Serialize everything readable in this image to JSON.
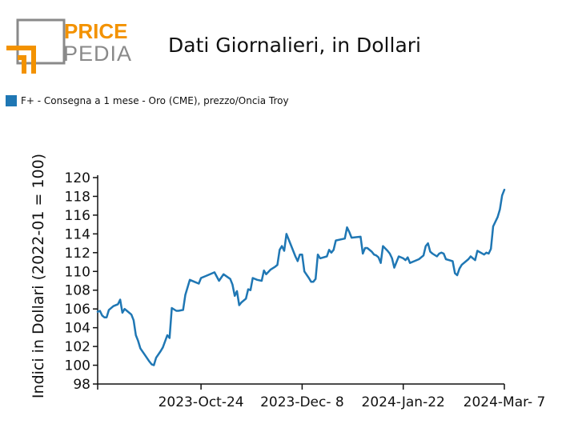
{
  "brand": {
    "line1": "PRICE",
    "line2": "PEDIA"
  },
  "header": {
    "title": "Dati Giornalieri, in Dollari"
  },
  "colors": {
    "series": "#1f77b4",
    "brand_orange": "#f39200",
    "brand_gray": "#8a8a8a"
  },
  "chart_data": {
    "type": "line",
    "title": "Dati Giornalieri, in Dollari",
    "ylabel": "Indici in Dollari (2022-01 = 100)",
    "xlabel": "",
    "ylim": [
      98,
      120
    ],
    "yticks": [
      98,
      100,
      102,
      104,
      106,
      108,
      110,
      112,
      114,
      116,
      118,
      120
    ],
    "xticks": [
      {
        "label": "2023-Oct-24",
        "date": "2023-10-24"
      },
      {
        "label": "2023-Dec- 8",
        "date": "2023-12-08"
      },
      {
        "label": "2024-Jan-22",
        "date": "2024-01-22"
      },
      {
        "label": "2024-Mar- 7",
        "date": "2024-03-07"
      }
    ],
    "xlim": [
      "2023-09-08",
      "2024-03-07"
    ],
    "grid": false,
    "legend_position": "top-left",
    "series": [
      {
        "name": "F+ - Consegna a 1 mese - Oro (CME), prezzo/Oncia Troy",
        "color": "#1f77b4",
        "points": [
          [
            "2023-09-08",
            105.7
          ],
          [
            "2023-09-09",
            105.8
          ],
          [
            "2023-09-10",
            105.3
          ],
          [
            "2023-09-11",
            105.1
          ],
          [
            "2023-09-12",
            105.1
          ],
          [
            "2023-09-13",
            105.9
          ],
          [
            "2023-09-15",
            106.3
          ],
          [
            "2023-09-17",
            106.5
          ],
          [
            "2023-09-18",
            107.0
          ],
          [
            "2023-09-19",
            105.6
          ],
          [
            "2023-09-20",
            106.0
          ],
          [
            "2023-09-21",
            105.8
          ],
          [
            "2023-09-23",
            105.4
          ],
          [
            "2023-09-24",
            104.8
          ],
          [
            "2023-09-25",
            103.2
          ],
          [
            "2023-09-26",
            102.6
          ],
          [
            "2023-09-27",
            101.8
          ],
          [
            "2023-09-29",
            101.1
          ],
          [
            "2023-10-01",
            100.4
          ],
          [
            "2023-10-02",
            100.1
          ],
          [
            "2023-10-03",
            100.0
          ],
          [
            "2023-10-04",
            100.8
          ],
          [
            "2023-10-06",
            101.5
          ],
          [
            "2023-10-07",
            101.9
          ],
          [
            "2023-10-09",
            103.2
          ],
          [
            "2023-10-10",
            102.9
          ],
          [
            "2023-10-11",
            106.1
          ],
          [
            "2023-10-13",
            105.8
          ],
          [
            "2023-10-14",
            105.8
          ],
          [
            "2023-10-16",
            105.9
          ],
          [
            "2023-10-17",
            107.5
          ],
          [
            "2023-10-19",
            109.1
          ],
          [
            "2023-10-21",
            108.9
          ],
          [
            "2023-10-23",
            108.7
          ],
          [
            "2023-10-24",
            109.3
          ],
          [
            "2023-10-27",
            109.6
          ],
          [
            "2023-10-30",
            109.9
          ],
          [
            "2023-11-01",
            109.0
          ],
          [
            "2023-11-03",
            109.7
          ],
          [
            "2023-11-06",
            109.2
          ],
          [
            "2023-11-07",
            108.6
          ],
          [
            "2023-11-08",
            107.4
          ],
          [
            "2023-11-09",
            107.9
          ],
          [
            "2023-11-10",
            106.4
          ],
          [
            "2023-11-11",
            106.7
          ],
          [
            "2023-11-13",
            107.1
          ],
          [
            "2023-11-14",
            108.1
          ],
          [
            "2023-11-15",
            108.0
          ],
          [
            "2023-11-16",
            109.3
          ],
          [
            "2023-11-18",
            109.1
          ],
          [
            "2023-11-20",
            109.0
          ],
          [
            "2023-11-21",
            110.1
          ],
          [
            "2023-11-22",
            109.7
          ],
          [
            "2023-11-24",
            110.2
          ],
          [
            "2023-11-26",
            110.5
          ],
          [
            "2023-11-27",
            110.7
          ],
          [
            "2023-11-28",
            112.3
          ],
          [
            "2023-11-29",
            112.7
          ],
          [
            "2023-11-30",
            112.2
          ],
          [
            "2023-12-01",
            114.0
          ],
          [
            "2023-12-03",
            112.8
          ],
          [
            "2023-12-05",
            111.6
          ],
          [
            "2023-12-06",
            111.1
          ],
          [
            "2023-12-07",
            111.8
          ],
          [
            "2023-12-08",
            111.8
          ],
          [
            "2023-12-09",
            110.0
          ],
          [
            "2023-12-11",
            109.3
          ],
          [
            "2023-12-12",
            108.9
          ],
          [
            "2023-12-13",
            108.9
          ],
          [
            "2023-12-14",
            109.2
          ],
          [
            "2023-12-15",
            111.8
          ],
          [
            "2023-12-16",
            111.4
          ],
          [
            "2023-12-19",
            111.6
          ],
          [
            "2023-12-20",
            112.3
          ],
          [
            "2023-12-21",
            112.0
          ],
          [
            "2023-12-22",
            112.3
          ],
          [
            "2023-12-23",
            113.3
          ],
          [
            "2023-12-27",
            113.5
          ],
          [
            "2023-12-28",
            114.7
          ],
          [
            "2023-12-29",
            114.2
          ],
          [
            "2023-12-30",
            113.6
          ],
          [
            "2024-01-03",
            113.7
          ],
          [
            "2024-01-04",
            111.9
          ],
          [
            "2024-01-05",
            112.5
          ],
          [
            "2024-01-06",
            112.5
          ],
          [
            "2024-01-08",
            112.1
          ],
          [
            "2024-01-09",
            111.8
          ],
          [
            "2024-01-10",
            111.7
          ],
          [
            "2024-01-11",
            111.5
          ],
          [
            "2024-01-12",
            110.9
          ],
          [
            "2024-01-13",
            112.7
          ],
          [
            "2024-01-15",
            112.2
          ],
          [
            "2024-01-16",
            111.9
          ],
          [
            "2024-01-17",
            111.4
          ],
          [
            "2024-01-18",
            110.4
          ],
          [
            "2024-01-19",
            111.0
          ],
          [
            "2024-01-20",
            111.6
          ],
          [
            "2024-01-22",
            111.4
          ],
          [
            "2024-01-23",
            111.2
          ],
          [
            "2024-01-24",
            111.5
          ],
          [
            "2024-01-25",
            110.9
          ],
          [
            "2024-01-27",
            111.1
          ],
          [
            "2024-01-29",
            111.3
          ],
          [
            "2024-01-31",
            111.7
          ],
          [
            "2024-02-01",
            112.7
          ],
          [
            "2024-02-02",
            113.0
          ],
          [
            "2024-02-03",
            112.1
          ],
          [
            "2024-02-04",
            111.9
          ],
          [
            "2024-02-06",
            111.6
          ],
          [
            "2024-02-07",
            111.9
          ],
          [
            "2024-02-08",
            112.0
          ],
          [
            "2024-02-09",
            111.9
          ],
          [
            "2024-02-10",
            111.3
          ],
          [
            "2024-02-13",
            111.1
          ],
          [
            "2024-02-14",
            109.8
          ],
          [
            "2024-02-15",
            109.6
          ],
          [
            "2024-02-16",
            110.3
          ],
          [
            "2024-02-17",
            110.7
          ],
          [
            "2024-02-20",
            111.3
          ],
          [
            "2024-02-21",
            111.6
          ],
          [
            "2024-02-23",
            111.2
          ],
          [
            "2024-02-24",
            112.2
          ],
          [
            "2024-02-27",
            111.8
          ],
          [
            "2024-02-28",
            112.0
          ],
          [
            "2024-02-29",
            111.9
          ],
          [
            "2024-03-01",
            112.4
          ],
          [
            "2024-03-02",
            114.8
          ],
          [
            "2024-03-04",
            115.8
          ],
          [
            "2024-03-05",
            116.6
          ],
          [
            "2024-03-06",
            118.1
          ],
          [
            "2024-03-07",
            118.7
          ]
        ]
      }
    ]
  }
}
